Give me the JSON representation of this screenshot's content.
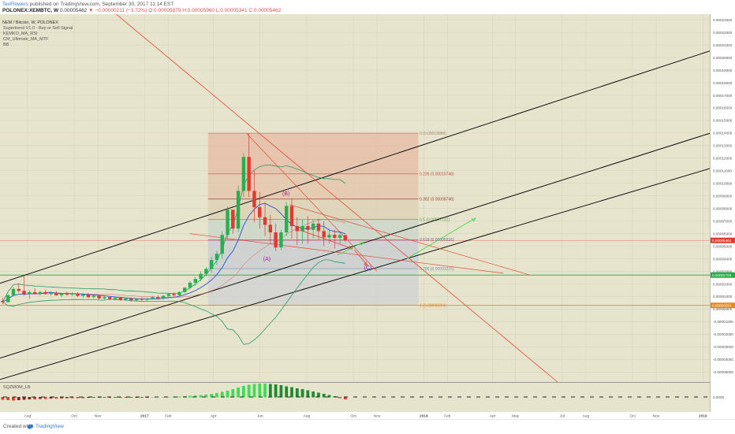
{
  "header": {
    "author": "TexFlowers",
    "published": "published on TradingView.com, September 30, 2017 11:14 EST",
    "symbol": "POLONEX:XEMBTC, W",
    "last": "0.00005462",
    "change": "−0.00000211 (−3.72%)",
    "ohlc": "O:0.00005879 H:0.00005960 L:0.00005341 C:0.00005462"
  },
  "indicators": {
    "pair_title": "NEM / Bitcoin, W, POLONEX",
    "list": [
      "Supertrend V1.0 - Buy or Sell Signal",
      "KEMKO_MA_RSI",
      "CM_Ultimate_MA_MTF",
      "BB"
    ],
    "sqz_label": "SQZMOM_LB"
  },
  "footer": {
    "created_with": "Created with",
    "brand": "TradingView"
  },
  "colors": {
    "background": "#e6e4cc",
    "candle_up": "#26b04f",
    "candle_down": "#e0392f",
    "channel": "#111111",
    "downtrend": "#e04a3a",
    "bb_upper": "#2a9a6a",
    "ma_blue": "#2b4fd8",
    "projection_green": "#3ddc52"
  },
  "chart_data": {
    "type": "candlestick",
    "timeframe": "W",
    "y_axis": {
      "ticks": [
        "0.00023000",
        "0.00022000",
        "0.00021000",
        "0.00020000",
        "0.00019000",
        "0.00018000",
        "0.00017000",
        "0.00016000",
        "0.00015000",
        "0.00014000",
        "0.00013000",
        "0.00012000",
        "0.00011000",
        "0.00010000",
        "0.00009000",
        "0.00008000",
        "0.00007000",
        "0.00006000",
        "0.00005000",
        "0.00004000",
        "0.00003000",
        "0.00002000",
        "0.00001000",
        "0.00000000",
        "-0.00001000",
        "-0.00002000",
        "-0.00003000",
        "-0.00004000",
        "-0.00005000"
      ],
      "range": [
        -5.8e-05,
        0.0002345
      ]
    },
    "x_axis": {
      "ticks": [
        "Aug",
        "Oct",
        "Nov",
        "2017",
        "Feb",
        "Apr",
        "Jun",
        "Aug",
        "Oct",
        "Nov",
        "2018",
        "Feb",
        "Apr",
        "May",
        "Jul",
        "Aug",
        "Oct",
        "Nov",
        "2019"
      ],
      "start": "2016-06-26",
      "end": "2019-01-10"
    },
    "price_labels": [
      {
        "text": "0.00005462",
        "value": 5.462e-05,
        "color": "#e0392f"
      },
      {
        "text": "0.00002706",
        "value": 2.706e-05,
        "color": "#22aa44"
      },
      {
        "text": "0.00000294",
        "value": 2.94e-06,
        "color": "#e8891c"
      }
    ],
    "fibonacci": {
      "levels": [
        {
          "label": "0 (0.00013986)",
          "value": 0.00013986
        },
        {
          "label": "0.236 (0.00010748)",
          "value": 0.00010748
        },
        {
          "label": "0.382 (0.00008748)",
          "value": 8.748e-05
        },
        {
          "label": "0.5 (0.00007132)",
          "value": 7.132e-05
        },
        {
          "label": "0.618 (0.00005516)",
          "value": 5.516e-05
        },
        {
          "label": "0.786 (0.00003215)",
          "value": 3.215e-05
        },
        {
          "label": "1 (0.00000294)",
          "value": 2.94e-06
        }
      ],
      "from_date": "2017-03-25",
      "to_date": "2017-12-25"
    },
    "wave_labels": [
      {
        "text": "(B)",
        "date": "2017-07-05",
        "value": 9.05e-05
      },
      {
        "text": "(A)",
        "date": "2017-06-10",
        "value": 3.86e-05
      },
      {
        "text": "(C)",
        "date": "2017-10-20",
        "value": 3.15e-05
      }
    ],
    "candles": [
      {
        "date": "2016-06-26",
        "o": 6.5e-06,
        "h": 9e-06,
        "l": 4e-06,
        "c": 5.5e-06
      },
      {
        "date": "2016-07-03",
        "o": 5.5e-06,
        "h": 1.2e-05,
        "l": 5e-06,
        "c": 1.1e-05
      },
      {
        "date": "2016-07-10",
        "o": 1.1e-05,
        "h": 1.75e-05,
        "l": 1e-05,
        "c": 1.6e-05
      },
      {
        "date": "2016-07-17",
        "o": 1.6e-05,
        "h": 2.05e-05,
        "l": 1.3e-05,
        "c": 1.45e-05
      },
      {
        "date": "2016-07-24",
        "o": 1.45e-05,
        "h": 2.65e-05,
        "l": 1.05e-05,
        "c": 1.2e-05
      },
      {
        "date": "2016-07-31",
        "o": 1.2e-05,
        "h": 1.5e-05,
        "l": 8e-06,
        "c": 1.35e-05
      },
      {
        "date": "2016-08-07",
        "o": 1.35e-05,
        "h": 1.65e-05,
        "l": 1.15e-05,
        "c": 1.2e-05
      },
      {
        "date": "2016-08-14",
        "o": 1.2e-05,
        "h": 1.45e-05,
        "l": 1.05e-05,
        "c": 1.35e-05
      },
      {
        "date": "2016-08-21",
        "o": 1.35e-05,
        "h": 1.55e-05,
        "l": 1.15e-05,
        "c": 1.2e-05
      },
      {
        "date": "2016-08-28",
        "o": 1.2e-05,
        "h": 1.4e-05,
        "l": 1.05e-05,
        "c": 1.3e-05
      },
      {
        "date": "2016-09-04",
        "o": 1.3e-05,
        "h": 1.45e-05,
        "l": 1.05e-05,
        "c": 1.1e-05
      },
      {
        "date": "2016-09-11",
        "o": 1.1e-05,
        "h": 1.3e-05,
        "l": 9.5e-06,
        "c": 1.25e-05
      },
      {
        "date": "2016-09-18",
        "o": 1.25e-05,
        "h": 1.4e-05,
        "l": 1.05e-05,
        "c": 1.15e-05
      },
      {
        "date": "2016-09-25",
        "o": 1.15e-05,
        "h": 1.35e-05,
        "l": 1e-05,
        "c": 1.25e-05
      },
      {
        "date": "2016-10-02",
        "o": 1.25e-05,
        "h": 1.35e-05,
        "l": 9.5e-06,
        "c": 1.05e-05
      },
      {
        "date": "2016-10-09",
        "o": 1.05e-05,
        "h": 1.25e-05,
        "l": 9e-06,
        "c": 1.15e-05
      },
      {
        "date": "2016-10-16",
        "o": 1.15e-05,
        "h": 1.25e-05,
        "l": 8.5e-06,
        "c": 9.5e-06
      },
      {
        "date": "2016-10-23",
        "o": 9.5e-06,
        "h": 1.1e-05,
        "l": 8e-06,
        "c": 1.05e-05
      },
      {
        "date": "2016-10-30",
        "o": 1.05e-05,
        "h": 1.15e-05,
        "l": 7.5e-06,
        "c": 8.5e-06
      },
      {
        "date": "2016-11-06",
        "o": 8.5e-06,
        "h": 1.05e-05,
        "l": 7.5e-06,
        "c": 9.5e-06
      },
      {
        "date": "2016-11-13",
        "o": 9.5e-06,
        "h": 1.05e-05,
        "l": 7e-06,
        "c": 8e-06
      },
      {
        "date": "2016-11-20",
        "o": 8e-06,
        "h": 9.5e-06,
        "l": 7e-06,
        "c": 9e-06
      },
      {
        "date": "2016-11-27",
        "o": 9e-06,
        "h": 9.5e-06,
        "l": 6.5e-06,
        "c": 7.5e-06
      },
      {
        "date": "2016-12-04",
        "o": 7.5e-06,
        "h": 9e-06,
        "l": 6.5e-06,
        "c": 8.5e-06
      },
      {
        "date": "2016-12-11",
        "o": 8.5e-06,
        "h": 9e-06,
        "l": 6e-06,
        "c": 7e-06
      },
      {
        "date": "2016-12-18",
        "o": 7e-06,
        "h": 8.5e-06,
        "l": 6e-06,
        "c": 8e-06
      },
      {
        "date": "2016-12-25",
        "o": 8e-06,
        "h": 9.5e-06,
        "l": 6.5e-06,
        "c": 7.5e-06
      },
      {
        "date": "2017-01-01",
        "o": 7.5e-06,
        "h": 9e-06,
        "l": 6.5e-06,
        "c": 8.5e-06
      },
      {
        "date": "2017-01-08",
        "o": 8.5e-06,
        "h": 1.05e-05,
        "l": 7.5e-06,
        "c": 9.5e-06
      },
      {
        "date": "2017-01-15",
        "o": 9.5e-06,
        "h": 1.1e-05,
        "l": 7.5e-06,
        "c": 8.5e-06
      },
      {
        "date": "2017-01-22",
        "o": 8.5e-06,
        "h": 1.15e-05,
        "l": 7.5e-06,
        "c": 1.05e-05
      },
      {
        "date": "2017-01-29",
        "o": 1.05e-05,
        "h": 1.25e-05,
        "l": 9e-06,
        "c": 1.2e-05
      },
      {
        "date": "2017-02-05",
        "o": 1.2e-05,
        "h": 1.35e-05,
        "l": 9.5e-06,
        "c": 1.1e-05
      },
      {
        "date": "2017-02-12",
        "o": 1.1e-05,
        "h": 1.4e-05,
        "l": 1e-05,
        "c": 1.35e-05
      },
      {
        "date": "2017-02-19",
        "o": 1.35e-05,
        "h": 1.75e-05,
        "l": 1.25e-05,
        "c": 1.7e-05
      },
      {
        "date": "2017-02-26",
        "o": 1.7e-05,
        "h": 2.25e-05,
        "l": 1.55e-05,
        "c": 2.1e-05
      },
      {
        "date": "2017-03-05",
        "o": 2.1e-05,
        "h": 2.55e-05,
        "l": 1.85e-05,
        "c": 2.4e-05
      },
      {
        "date": "2017-03-12",
        "o": 2.4e-05,
        "h": 3e-05,
        "l": 2.2e-05,
        "c": 2.8e-05
      },
      {
        "date": "2017-03-19",
        "o": 2.8e-05,
        "h": 3.35e-05,
        "l": 2.6e-05,
        "c": 3.2e-05
      },
      {
        "date": "2017-03-26",
        "o": 3.2e-05,
        "h": 4.15e-05,
        "l": 2.9e-05,
        "c": 3.9e-05
      },
      {
        "date": "2017-04-02",
        "o": 3.9e-05,
        "h": 4.65e-05,
        "l": 3.5e-05,
        "c": 4.4e-05
      },
      {
        "date": "2017-04-09",
        "o": 4.4e-05,
        "h": 6.15e-05,
        "l": 4e-05,
        "c": 5.9e-05
      },
      {
        "date": "2017-04-16",
        "o": 5.9e-05,
        "h": 8.15e-05,
        "l": 5.5e-05,
        "c": 7.9e-05
      },
      {
        "date": "2017-04-23",
        "o": 7.9e-05,
        "h": 7.7e-05,
        "l": 6e-05,
        "c": 6.4e-05
      },
      {
        "date": "2017-04-30",
        "o": 6.4e-05,
        "h": 9.8e-05,
        "l": 6.1e-05,
        "c": 9.4e-05
      },
      {
        "date": "2017-05-07",
        "o": 9.4e-05,
        "h": 0.000124,
        "l": 8.9e-05,
        "c": 0.000121
      },
      {
        "date": "2017-05-14",
        "o": 0.000121,
        "h": 0.0001399,
        "l": 8.9e-05,
        "c": 9.4e-05
      },
      {
        "date": "2017-05-21",
        "o": 9.4e-05,
        "h": 0.00011,
        "l": 6.9e-05,
        "c": 8.1e-05
      },
      {
        "date": "2017-05-28",
        "o": 8.1e-05,
        "h": 9.3e-05,
        "l": 6.4e-05,
        "c": 7.3e-05
      },
      {
        "date": "2017-06-04",
        "o": 7.3e-05,
        "h": 8.5e-05,
        "l": 5.8e-05,
        "c": 6.7e-05
      },
      {
        "date": "2017-06-11",
        "o": 6.7e-05,
        "h": 7.5e-05,
        "l": 5.2e-05,
        "c": 6.1e-05
      },
      {
        "date": "2017-06-18",
        "o": 6.1e-05,
        "h": 6.8e-05,
        "l": 4.6e-05,
        "c": 4.9e-05
      },
      {
        "date": "2017-06-25",
        "o": 4.9e-05,
        "h": 6.3e-05,
        "l": 4.7e-05,
        "c": 6.1e-05
      },
      {
        "date": "2017-07-02",
        "o": 6.1e-05,
        "h": 8.5e-05,
        "l": 5.8e-05,
        "c": 8.2e-05
      },
      {
        "date": "2017-07-09",
        "o": 8.2e-05,
        "h": 8.8e-05,
        "l": 5.6e-05,
        "c": 6.6e-05
      },
      {
        "date": "2017-07-16",
        "o": 6.6e-05,
        "h": 7.3e-05,
        "l": 5.1e-05,
        "c": 6.2e-05
      },
      {
        "date": "2017-07-23",
        "o": 6.2e-05,
        "h": 7.1e-05,
        "l": 5.2e-05,
        "c": 6.6e-05
      },
      {
        "date": "2017-07-30",
        "o": 6.6e-05,
        "h": 7.4e-05,
        "l": 5.2e-05,
        "c": 6.3e-05
      },
      {
        "date": "2017-08-06",
        "o": 6.3e-05,
        "h": 7.1e-05,
        "l": 5.6e-05,
        "c": 6.8e-05
      },
      {
        "date": "2017-08-13",
        "o": 6.8e-05,
        "h": 7.2e-05,
        "l": 5.5e-05,
        "c": 6.2e-05
      },
      {
        "date": "2017-08-20",
        "o": 6.2e-05,
        "h": 7e-05,
        "l": 5e-05,
        "c": 5.7e-05
      },
      {
        "date": "2017-08-27",
        "o": 5.7e-05,
        "h": 6.4e-05,
        "l": 5.2e-05,
        "c": 5.9e-05
      },
      {
        "date": "2017-09-03",
        "o": 5.9e-05,
        "h": 6.3e-05,
        "l": 4.8e-05,
        "c": 5.67e-05
      },
      {
        "date": "2017-09-10",
        "o": 5.67e-05,
        "h": 6.1e-05,
        "l": 5.2e-05,
        "c": 5.88e-05
      },
      {
        "date": "2017-09-17",
        "o": 5.88e-05,
        "h": 5.96e-05,
        "l": 5.34e-05,
        "c": 5.46e-05
      }
    ],
    "squeeze_momentum": [
      -6,
      -7,
      -8,
      -7,
      -6,
      -5,
      -5,
      -4,
      -4,
      -3,
      -3,
      -3,
      -2,
      -2,
      -2,
      -2,
      -1,
      -1,
      -1,
      -1,
      -1,
      -1,
      -1,
      -1,
      -1,
      -1,
      -1,
      -1,
      0,
      0,
      0,
      0,
      1,
      1,
      2,
      3,
      4,
      5,
      6,
      8,
      10,
      13,
      16,
      20,
      24,
      28,
      31,
      33,
      34,
      34,
      33,
      32,
      30,
      27,
      25,
      22,
      20,
      17,
      14,
      11,
      8,
      5,
      2,
      -2,
      -5,
      -9
    ]
  }
}
